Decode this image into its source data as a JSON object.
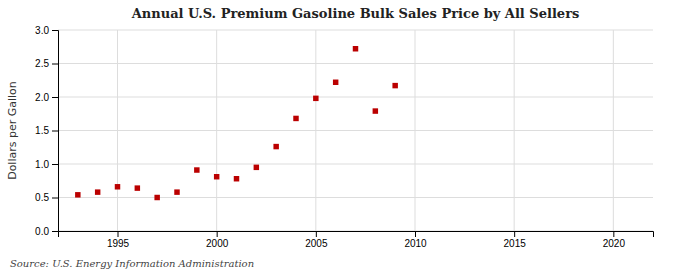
{
  "chart_data": {
    "type": "scatter",
    "title": "Annual U.S. Premium Gasoline Bulk Sales Price by All Sellers",
    "ylabel": "Dollars per Gallon",
    "annotation": "Source: U.S. Energy Information Administration",
    "x": [
      1993,
      1994,
      1995,
      1996,
      1997,
      1998,
      1999,
      2000,
      2001,
      2002,
      2003,
      2004,
      2005,
      2006,
      2007,
      2008,
      2009
    ],
    "values": [
      0.54,
      0.58,
      0.66,
      0.64,
      0.5,
      0.58,
      0.91,
      0.81,
      0.78,
      0.95,
      1.26,
      1.68,
      1.98,
      2.22,
      2.72,
      1.79,
      2.17
    ],
    "color": "#bb0000",
    "marker": "square",
    "xlim": [
      1992,
      2022
    ],
    "ylim": [
      0.0,
      3.0
    ],
    "xticks": [
      1995,
      2000,
      2005,
      2010,
      2015,
      2020
    ],
    "yticks": [
      {
        "value": 0.0,
        "label": "0.0"
      },
      0.5,
      {
        "value": 1.0,
        "label": "1.0"
      },
      1.5,
      {
        "value": 2.0,
        "label": "2.0"
      },
      2.5,
      {
        "value": 3.0,
        "label": "3.0"
      }
    ],
    "grid": true
  }
}
